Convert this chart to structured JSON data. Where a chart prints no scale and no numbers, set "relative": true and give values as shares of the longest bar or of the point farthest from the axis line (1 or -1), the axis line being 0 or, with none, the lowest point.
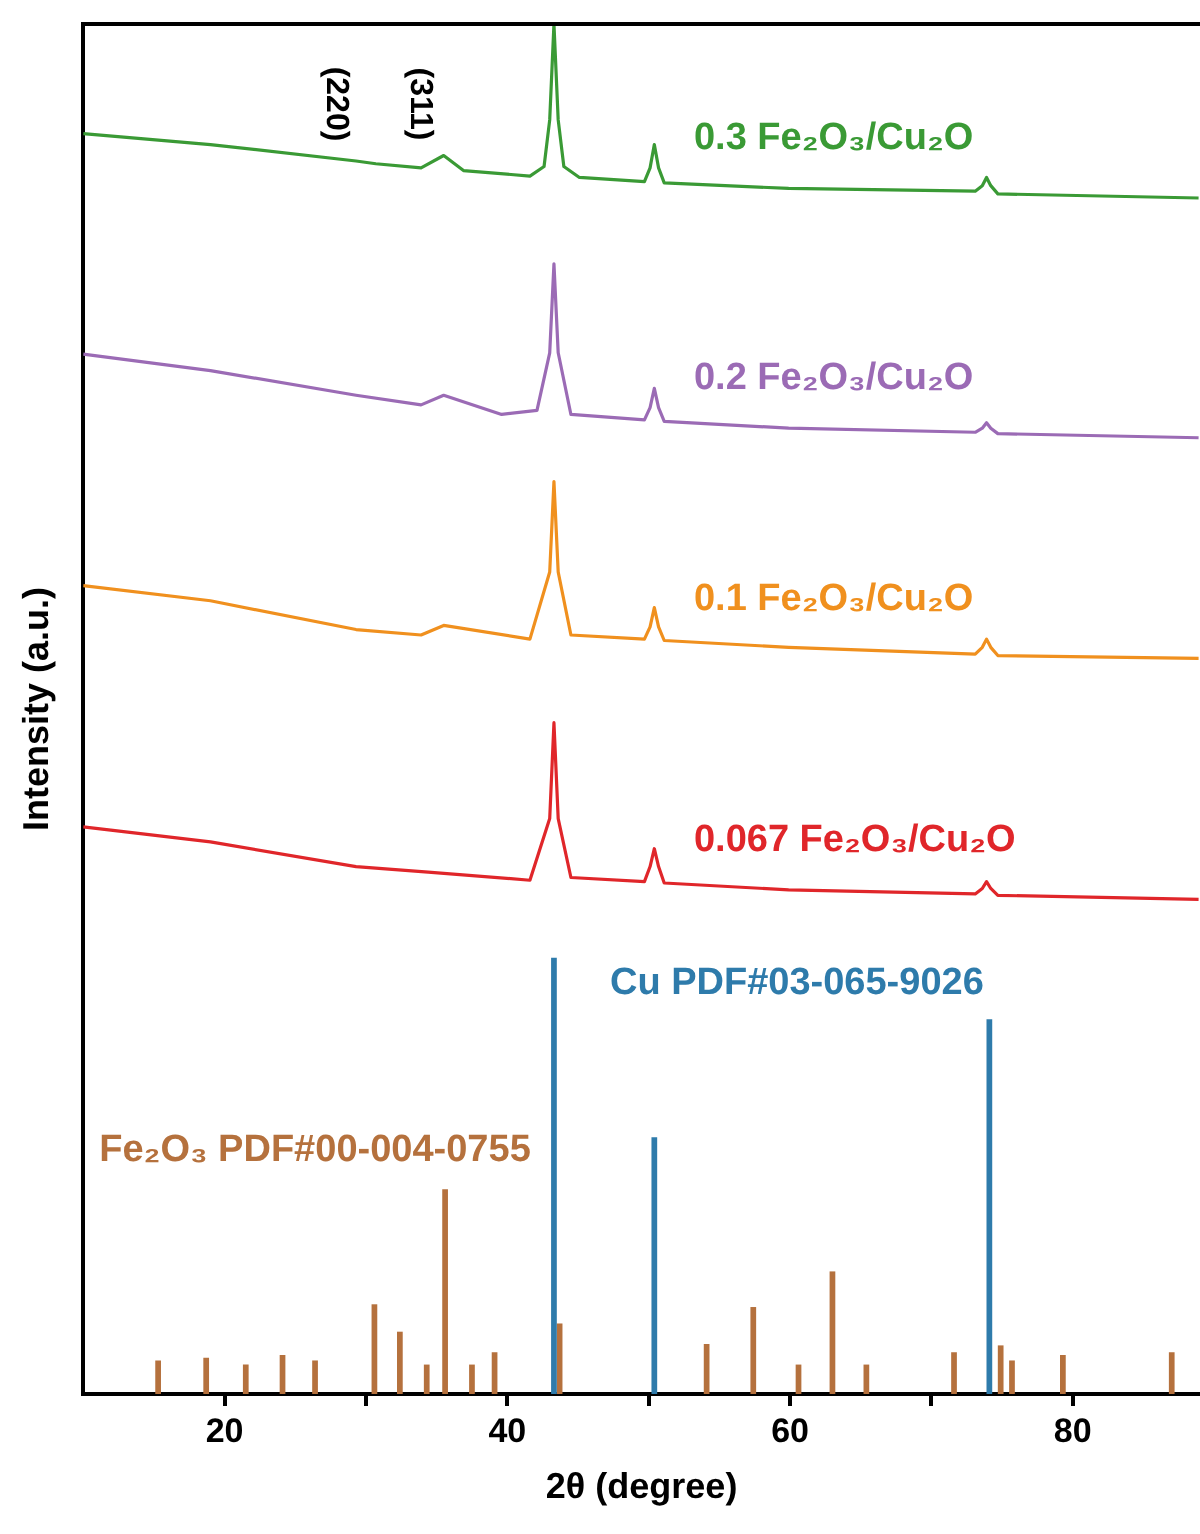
{
  "chart_data": {
    "type": "line",
    "relative": true,
    "xlabel": "2θ (degree)",
    "ylabel": "Intensity (a.u.)",
    "xlim": [
      10,
      89
    ],
    "xticks": [
      20,
      {
        "value": 30,
        "label": null
      },
      40,
      {
        "value": 50,
        "label": null
      },
      60,
      {
        "value": 70,
        "label": null
      },
      80
    ],
    "legend": false,
    "grid": false,
    "marker": "none",
    "annotations": [
      "(220)",
      "(311)"
    ],
    "series": [
      {
        "name": "0.3 Fe₂O₃/Cu₂O",
        "color": "#3a9a35",
        "x": [
          10,
          19,
          29.3,
          30.7,
          33.9,
          35.5,
          36.9,
          41.6,
          42.6,
          43.0,
          43.3,
          43.6,
          44.0,
          45.1,
          49.7,
          50.1,
          50.4,
          50.7,
          51.1,
          59.9,
          73.1,
          73.6,
          73.9,
          74.2,
          74.7,
          88.9
        ],
        "values": [
          0.92,
          0.912,
          0.9,
          0.898,
          0.895,
          0.904,
          0.893,
          0.889,
          0.896,
          0.93,
          1.0,
          0.93,
          0.896,
          0.888,
          0.885,
          0.895,
          0.912,
          0.895,
          0.884,
          0.88,
          0.878,
          0.882,
          0.888,
          0.882,
          0.876,
          0.873
        ]
      },
      {
        "name": "0.2 Fe₂O₃/Cu₂O",
        "color": "#9b6bb5",
        "x": [
          10,
          19,
          29.3,
          33.9,
          35.5,
          39.6,
          42.1,
          43.0,
          43.3,
          43.6,
          44.5,
          49.7,
          50.1,
          50.4,
          50.7,
          51.1,
          59.9,
          73.1,
          73.6,
          73.9,
          74.2,
          74.7,
          88.9
        ],
        "values": [
          0.759,
          0.747,
          0.729,
          0.722,
          0.729,
          0.715,
          0.718,
          0.76,
          0.825,
          0.76,
          0.715,
          0.711,
          0.72,
          0.734,
          0.72,
          0.71,
          0.705,
          0.702,
          0.705,
          0.709,
          0.705,
          0.701,
          0.698
        ]
      },
      {
        "name": "0.1 Fe₂O₃/Cu₂O",
        "color": "#f0901e",
        "x": [
          10,
          19,
          29.3,
          33.9,
          35.5,
          41.6,
          43.0,
          43.3,
          43.6,
          44.5,
          49.7,
          50.1,
          50.4,
          50.7,
          51.1,
          59.9,
          73.1,
          73.6,
          73.9,
          74.2,
          74.7,
          88.9
        ],
        "values": [
          0.59,
          0.579,
          0.558,
          0.554,
          0.561,
          0.551,
          0.6,
          0.666,
          0.6,
          0.554,
          0.551,
          0.56,
          0.574,
          0.56,
          0.55,
          0.545,
          0.54,
          0.545,
          0.551,
          0.545,
          0.539,
          0.537
        ]
      },
      {
        "name": "0.067 Fe₂O₃/Cu₂O",
        "color": "#e0262a",
        "x": [
          10,
          19,
          29.3,
          34.4,
          41.6,
          43.0,
          43.3,
          43.6,
          44.5,
          49.7,
          50.1,
          50.4,
          50.7,
          51.1,
          59.9,
          73.1,
          73.6,
          73.9,
          74.2,
          74.7,
          88.9
        ],
        "values": [
          0.414,
          0.403,
          0.385,
          0.381,
          0.375,
          0.42,
          0.49,
          0.42,
          0.377,
          0.374,
          0.385,
          0.398,
          0.385,
          0.373,
          0.368,
          0.365,
          0.369,
          0.374,
          0.369,
          0.364,
          0.361
        ]
      },
      {
        "name": "Cu PDF#03-065-9026",
        "type": "bar",
        "color": "#2e7bab",
        "x": [
          43.3,
          50.4,
          74.1
        ],
        "values": [
          0.318,
          0.187,
          0.273
        ]
      },
      {
        "name": "Fe₂O₃ PDF#00-004-0755",
        "type": "bar",
        "color": "#b5713d",
        "x": [
          15.3,
          18.7,
          21.5,
          24.1,
          26.4,
          30.6,
          32.4,
          34.3,
          35.6,
          37.5,
          39.1,
          43.7,
          54.1,
          57.4,
          60.6,
          63.0,
          65.4,
          71.6,
          74.9,
          75.7,
          79.3,
          87.0
        ],
        "values": [
          0.024,
          0.026,
          0.021,
          0.028,
          0.024,
          0.065,
          0.045,
          0.021,
          0.149,
          0.021,
          0.03,
          0.051,
          0.036,
          0.063,
          0.021,
          0.089,
          0.021,
          0.03,
          0.035,
          0.024,
          0.028,
          0.03
        ]
      }
    ]
  }
}
